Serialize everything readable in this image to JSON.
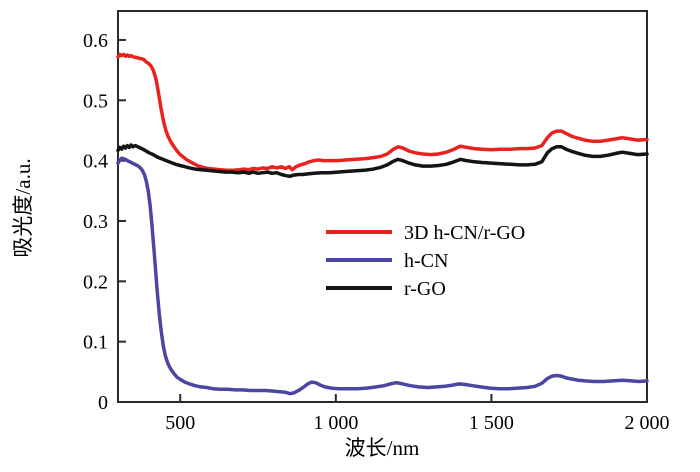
{
  "figure": {
    "background": "#ffffff",
    "frame_color": "#2a2a2a"
  },
  "chart_data": {
    "type": "line",
    "title": "",
    "xlabel": "波长/nm",
    "ylabel": "吸光度/a.u.",
    "xlim": [
      300,
      2000
    ],
    "ylim": [
      0,
      0.648
    ],
    "grid": false,
    "legend_position": "inside center-right",
    "x_ticks": [
      {
        "value": 500,
        "label": "500"
      },
      {
        "value": 1000,
        "label": "1 000"
      },
      {
        "value": 1500,
        "label": "1 500"
      },
      {
        "value": 2000,
        "label": "2 000"
      }
    ],
    "y_ticks": [
      {
        "value": 0,
        "label": "0"
      },
      {
        "value": 0.1,
        "label": "0.1"
      },
      {
        "value": 0.2,
        "label": "0.2"
      },
      {
        "value": 0.3,
        "label": "0.3"
      },
      {
        "value": 0.4,
        "label": "0.4"
      },
      {
        "value": 0.5,
        "label": "0.5"
      },
      {
        "value": 0.6,
        "label": "0.6"
      }
    ],
    "series": [
      {
        "name": "3D h-CN/r-GO",
        "color": "#e8231e",
        "points": [
          [
            300,
            0.572
          ],
          [
            306,
            0.576
          ],
          [
            312,
            0.574
          ],
          [
            318,
            0.576
          ],
          [
            324,
            0.573
          ],
          [
            330,
            0.575
          ],
          [
            336,
            0.573
          ],
          [
            342,
            0.574
          ],
          [
            350,
            0.572
          ],
          [
            358,
            0.571
          ],
          [
            366,
            0.57
          ],
          [
            374,
            0.569
          ],
          [
            382,
            0.568
          ],
          [
            390,
            0.564
          ],
          [
            398,
            0.561
          ],
          [
            406,
            0.557
          ],
          [
            414,
            0.549
          ],
          [
            422,
            0.535
          ],
          [
            430,
            0.512
          ],
          [
            438,
            0.488
          ],
          [
            446,
            0.466
          ],
          [
            454,
            0.45
          ],
          [
            462,
            0.439
          ],
          [
            470,
            0.431
          ],
          [
            480,
            0.423
          ],
          [
            490,
            0.416
          ],
          [
            500,
            0.41
          ],
          [
            512,
            0.405
          ],
          [
            525,
            0.4
          ],
          [
            540,
            0.396
          ],
          [
            555,
            0.392
          ],
          [
            572,
            0.389
          ],
          [
            590,
            0.387
          ],
          [
            610,
            0.386
          ],
          [
            630,
            0.385
          ],
          [
            650,
            0.384
          ],
          [
            670,
            0.384
          ],
          [
            690,
            0.385
          ],
          [
            705,
            0.386
          ],
          [
            720,
            0.385
          ],
          [
            735,
            0.387
          ],
          [
            750,
            0.386
          ],
          [
            765,
            0.388
          ],
          [
            780,
            0.387
          ],
          [
            795,
            0.39
          ],
          [
            810,
            0.388
          ],
          [
            825,
            0.39
          ],
          [
            838,
            0.387
          ],
          [
            850,
            0.39
          ],
          [
            860,
            0.385
          ],
          [
            872,
            0.39
          ],
          [
            886,
            0.393
          ],
          [
            900,
            0.395
          ],
          [
            915,
            0.398
          ],
          [
            930,
            0.4
          ],
          [
            945,
            0.401
          ],
          [
            960,
            0.4
          ],
          [
            980,
            0.4
          ],
          [
            1005,
            0.4
          ],
          [
            1030,
            0.401
          ],
          [
            1060,
            0.402
          ],
          [
            1090,
            0.403
          ],
          [
            1120,
            0.405
          ],
          [
            1145,
            0.407
          ],
          [
            1165,
            0.411
          ],
          [
            1185,
            0.419
          ],
          [
            1200,
            0.423
          ],
          [
            1215,
            0.421
          ],
          [
            1235,
            0.416
          ],
          [
            1255,
            0.413
          ],
          [
            1280,
            0.411
          ],
          [
            1305,
            0.41
          ],
          [
            1330,
            0.411
          ],
          [
            1355,
            0.414
          ],
          [
            1380,
            0.419
          ],
          [
            1400,
            0.424
          ],
          [
            1420,
            0.422
          ],
          [
            1445,
            0.42
          ],
          [
            1470,
            0.419
          ],
          [
            1500,
            0.418
          ],
          [
            1530,
            0.419
          ],
          [
            1560,
            0.419
          ],
          [
            1590,
            0.42
          ],
          [
            1615,
            0.42
          ],
          [
            1640,
            0.421
          ],
          [
            1662,
            0.425
          ],
          [
            1680,
            0.438
          ],
          [
            1695,
            0.446
          ],
          [
            1710,
            0.449
          ],
          [
            1725,
            0.449
          ],
          [
            1740,
            0.445
          ],
          [
            1760,
            0.44
          ],
          [
            1780,
            0.437
          ],
          [
            1800,
            0.434
          ],
          [
            1825,
            0.432
          ],
          [
            1850,
            0.432
          ],
          [
            1875,
            0.434
          ],
          [
            1900,
            0.436
          ],
          [
            1920,
            0.438
          ],
          [
            1945,
            0.436
          ],
          [
            1970,
            0.434
          ],
          [
            2000,
            0.435
          ]
        ]
      },
      {
        "name": "h-CN",
        "color": "#4a46a2",
        "points": [
          [
            300,
            0.396
          ],
          [
            306,
            0.401
          ],
          [
            312,
            0.404
          ],
          [
            318,
            0.403
          ],
          [
            324,
            0.402
          ],
          [
            330,
            0.4
          ],
          [
            338,
            0.398
          ],
          [
            346,
            0.396
          ],
          [
            354,
            0.394
          ],
          [
            362,
            0.392
          ],
          [
            370,
            0.389
          ],
          [
            378,
            0.384
          ],
          [
            385,
            0.377
          ],
          [
            391,
            0.366
          ],
          [
            397,
            0.35
          ],
          [
            403,
            0.326
          ],
          [
            409,
            0.294
          ],
          [
            415,
            0.256
          ],
          [
            421,
            0.216
          ],
          [
            427,
            0.178
          ],
          [
            433,
            0.144
          ],
          [
            439,
            0.116
          ],
          [
            446,
            0.092
          ],
          [
            453,
            0.075
          ],
          [
            461,
            0.063
          ],
          [
            470,
            0.054
          ],
          [
            480,
            0.047
          ],
          [
            490,
            0.041
          ],
          [
            502,
            0.037
          ],
          [
            515,
            0.033
          ],
          [
            530,
            0.03
          ],
          [
            548,
            0.027
          ],
          [
            566,
            0.025
          ],
          [
            585,
            0.024
          ],
          [
            605,
            0.022
          ],
          [
            628,
            0.021
          ],
          [
            652,
            0.021
          ],
          [
            676,
            0.02
          ],
          [
            700,
            0.02
          ],
          [
            725,
            0.019
          ],
          [
            750,
            0.019
          ],
          [
            775,
            0.019
          ],
          [
            800,
            0.018
          ],
          [
            820,
            0.017
          ],
          [
            838,
            0.016
          ],
          [
            852,
            0.014
          ],
          [
            865,
            0.015
          ],
          [
            880,
            0.019
          ],
          [
            895,
            0.024
          ],
          [
            910,
            0.03
          ],
          [
            922,
            0.033
          ],
          [
            935,
            0.032
          ],
          [
            950,
            0.028
          ],
          [
            965,
            0.025
          ],
          [
            985,
            0.023
          ],
          [
            1010,
            0.022
          ],
          [
            1040,
            0.022
          ],
          [
            1070,
            0.022
          ],
          [
            1100,
            0.023
          ],
          [
            1130,
            0.025
          ],
          [
            1155,
            0.027
          ],
          [
            1175,
            0.03
          ],
          [
            1195,
            0.032
          ],
          [
            1215,
            0.03
          ],
          [
            1240,
            0.027
          ],
          [
            1265,
            0.025
          ],
          [
            1295,
            0.024
          ],
          [
            1325,
            0.025
          ],
          [
            1350,
            0.026
          ],
          [
            1375,
            0.028
          ],
          [
            1395,
            0.03
          ],
          [
            1415,
            0.029
          ],
          [
            1440,
            0.027
          ],
          [
            1465,
            0.025
          ],
          [
            1495,
            0.023
          ],
          [
            1525,
            0.022
          ],
          [
            1555,
            0.022
          ],
          [
            1585,
            0.023
          ],
          [
            1615,
            0.024
          ],
          [
            1640,
            0.026
          ],
          [
            1662,
            0.031
          ],
          [
            1680,
            0.039
          ],
          [
            1695,
            0.043
          ],
          [
            1710,
            0.044
          ],
          [
            1725,
            0.043
          ],
          [
            1740,
            0.04
          ],
          [
            1760,
            0.038
          ],
          [
            1780,
            0.036
          ],
          [
            1800,
            0.035
          ],
          [
            1830,
            0.034
          ],
          [
            1860,
            0.034
          ],
          [
            1890,
            0.035
          ],
          [
            1920,
            0.036
          ],
          [
            1950,
            0.035
          ],
          [
            1975,
            0.034
          ],
          [
            2000,
            0.035
          ]
        ]
      },
      {
        "name": "r-GO",
        "color": "#141414",
        "points": [
          [
            300,
            0.417
          ],
          [
            306,
            0.422
          ],
          [
            312,
            0.419
          ],
          [
            318,
            0.424
          ],
          [
            324,
            0.421
          ],
          [
            330,
            0.425
          ],
          [
            336,
            0.422
          ],
          [
            342,
            0.426
          ],
          [
            348,
            0.423
          ],
          [
            356,
            0.425
          ],
          [
            364,
            0.423
          ],
          [
            372,
            0.421
          ],
          [
            380,
            0.419
          ],
          [
            390,
            0.416
          ],
          [
            400,
            0.413
          ],
          [
            413,
            0.41
          ],
          [
            426,
            0.406
          ],
          [
            440,
            0.403
          ],
          [
            455,
            0.4
          ],
          [
            470,
            0.397
          ],
          [
            485,
            0.394
          ],
          [
            500,
            0.392
          ],
          [
            515,
            0.39
          ],
          [
            530,
            0.388
          ],
          [
            548,
            0.386
          ],
          [
            566,
            0.385
          ],
          [
            585,
            0.384
          ],
          [
            605,
            0.383
          ],
          [
            625,
            0.382
          ],
          [
            645,
            0.381
          ],
          [
            665,
            0.381
          ],
          [
            685,
            0.38
          ],
          [
            705,
            0.381
          ],
          [
            720,
            0.379
          ],
          [
            735,
            0.381
          ],
          [
            750,
            0.379
          ],
          [
            765,
            0.38
          ],
          [
            780,
            0.381
          ],
          [
            795,
            0.379
          ],
          [
            810,
            0.38
          ],
          [
            825,
            0.377
          ],
          [
            840,
            0.375
          ],
          [
            852,
            0.374
          ],
          [
            865,
            0.376
          ],
          [
            880,
            0.377
          ],
          [
            895,
            0.377
          ],
          [
            910,
            0.378
          ],
          [
            930,
            0.379
          ],
          [
            955,
            0.38
          ],
          [
            980,
            0.38
          ],
          [
            1005,
            0.381
          ],
          [
            1030,
            0.382
          ],
          [
            1060,
            0.383
          ],
          [
            1090,
            0.384
          ],
          [
            1120,
            0.386
          ],
          [
            1145,
            0.389
          ],
          [
            1165,
            0.393
          ],
          [
            1185,
            0.399
          ],
          [
            1200,
            0.402
          ],
          [
            1215,
            0.4
          ],
          [
            1235,
            0.396
          ],
          [
            1255,
            0.393
          ],
          [
            1280,
            0.391
          ],
          [
            1305,
            0.391
          ],
          [
            1330,
            0.392
          ],
          [
            1355,
            0.394
          ],
          [
            1380,
            0.398
          ],
          [
            1400,
            0.402
          ],
          [
            1420,
            0.4
          ],
          [
            1445,
            0.398
          ],
          [
            1470,
            0.397
          ],
          [
            1500,
            0.396
          ],
          [
            1530,
            0.395
          ],
          [
            1560,
            0.394
          ],
          [
            1590,
            0.393
          ],
          [
            1615,
            0.393
          ],
          [
            1640,
            0.394
          ],
          [
            1662,
            0.398
          ],
          [
            1680,
            0.413
          ],
          [
            1695,
            0.42
          ],
          [
            1710,
            0.423
          ],
          [
            1725,
            0.423
          ],
          [
            1740,
            0.419
          ],
          [
            1760,
            0.415
          ],
          [
            1780,
            0.412
          ],
          [
            1800,
            0.409
          ],
          [
            1825,
            0.407
          ],
          [
            1850,
            0.407
          ],
          [
            1875,
            0.409
          ],
          [
            1900,
            0.412
          ],
          [
            1920,
            0.414
          ],
          [
            1945,
            0.412
          ],
          [
            1970,
            0.41
          ],
          [
            2000,
            0.411
          ]
        ]
      }
    ]
  }
}
